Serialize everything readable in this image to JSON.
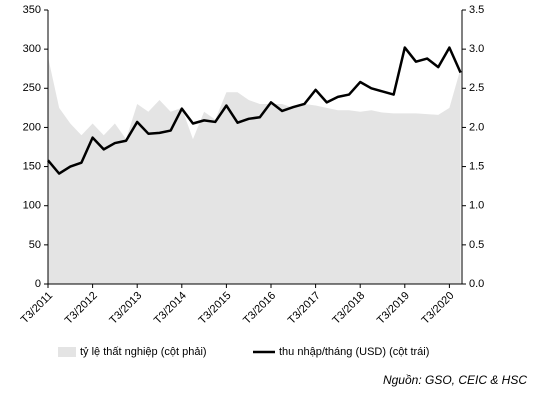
{
  "chart_data": {
    "type": "line",
    "categories": [
      "T3/2011",
      null,
      null,
      null,
      "T3/2012",
      null,
      null,
      null,
      "T3/2013",
      null,
      null,
      null,
      "T3/2014",
      null,
      null,
      null,
      "T3/2015",
      null,
      null,
      null,
      "T3/2016",
      null,
      null,
      null,
      "T3/2017",
      null,
      null,
      null,
      "T3/2018",
      null,
      null,
      null,
      "T3/2019",
      null,
      null,
      null,
      "T3/2020",
      null
    ],
    "series": [
      {
        "name": "tỷ lệ thất nghiệp (cột phải)",
        "type": "area",
        "axis": "y2",
        "color": "#e4e4e4",
        "values": [
          2.9,
          2.25,
          2.05,
          1.9,
          2.05,
          1.9,
          2.05,
          1.85,
          2.3,
          2.2,
          2.35,
          2.2,
          2.25,
          1.85,
          2.2,
          2.1,
          2.45,
          2.45,
          2.35,
          2.3,
          2.3,
          2.3,
          2.25,
          2.3,
          2.28,
          2.25,
          2.22,
          2.22,
          2.2,
          2.22,
          2.19,
          2.18,
          2.18,
          2.18,
          2.17,
          2.16,
          2.25,
          2.75
        ]
      },
      {
        "name": "thu nhập/tháng (USD) (cột trái)",
        "type": "line",
        "color": "#000000",
        "values": [
          158,
          141,
          150,
          155,
          187,
          172,
          180,
          183,
          207,
          192,
          193,
          196,
          224,
          205,
          209,
          207,
          228,
          206,
          211,
          213,
          232,
          221,
          226,
          230,
          248,
          232,
          239,
          242,
          258,
          250,
          246,
          242,
          302,
          284,
          288,
          277,
          302,
          270
        ]
      }
    ],
    "ylim": [
      0,
      350
    ],
    "yticks": [
      0,
      50,
      100,
      150,
      200,
      250,
      300,
      350
    ],
    "y2lim": [
      0,
      3.5
    ],
    "y2ticks": [
      {
        "value": 0,
        "label": "0.0"
      },
      0.5,
      {
        "value": 1,
        "label": "1.0"
      },
      1.5,
      {
        "value": 2,
        "label": "2.0"
      },
      2.5,
      {
        "value": 3,
        "label": "3.0"
      },
      3.5
    ],
    "grid": false,
    "source": "Nguồn: GSO, CEIC & HSC"
  }
}
